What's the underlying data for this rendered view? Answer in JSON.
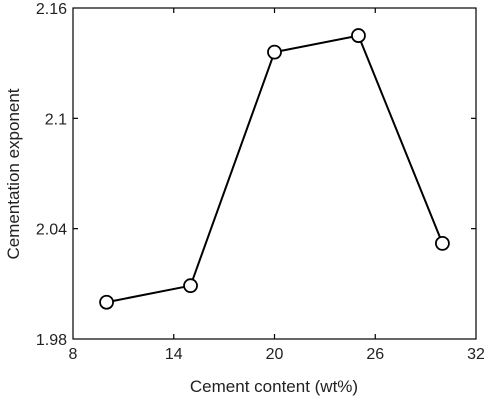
{
  "chart_data": {
    "type": "line",
    "xlabel": "Cement content (wt%)",
    "ylabel": "Cementation exponent",
    "xlim": [
      8,
      32
    ],
    "ylim": [
      1.98,
      2.16
    ],
    "x_ticks": [
      8,
      14,
      20,
      26,
      32
    ],
    "y_ticks": [
      1.98,
      2.04,
      2.1,
      2.16
    ],
    "x_tick_labels": [
      "8",
      "14",
      "20",
      "26",
      "32"
    ],
    "y_tick_labels": [
      "1.98",
      "2.04",
      "2.1",
      "2.16"
    ],
    "grid": false,
    "marker": "open-circle",
    "line_color": "#000000",
    "series": [
      {
        "x": [
          10,
          15,
          20,
          25,
          30
        ],
        "y": [
          2.0,
          2.009,
          2.136,
          2.145,
          2.032
        ]
      }
    ]
  }
}
